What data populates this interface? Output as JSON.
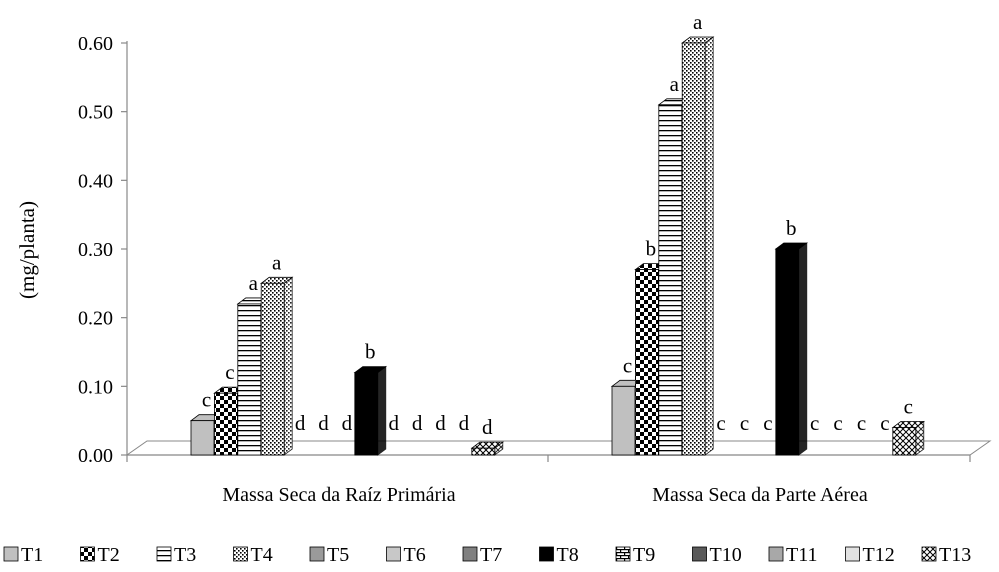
{
  "chart_data": {
    "type": "bar",
    "title": "",
    "xlabel": "",
    "ylabel": "(mg/planta)",
    "ylim": [
      0,
      0.6
    ],
    "yticks": [
      "0.00",
      "0.10",
      "0.20",
      "0.30",
      "0.40",
      "0.50",
      "0.60"
    ],
    "grid": false,
    "legend_position": "bottom",
    "categories": [
      "Massa Seca da Raíz Primária",
      "Massa Seca da Parte Aérea"
    ],
    "series": [
      {
        "name": "T1",
        "values": [
          0.05,
          0.1
        ],
        "letters": [
          "c",
          "c"
        ],
        "pattern": "solid-lightgray"
      },
      {
        "name": "T2",
        "values": [
          0.09,
          0.27
        ],
        "letters": [
          "c",
          "b"
        ],
        "pattern": "checker"
      },
      {
        "name": "T3",
        "values": [
          0.22,
          0.51
        ],
        "letters": [
          "a",
          "a"
        ],
        "pattern": "horizontal-lines"
      },
      {
        "name": "T4",
        "values": [
          0.25,
          0.6
        ],
        "letters": [
          "a",
          "a"
        ],
        "pattern": "dots"
      },
      {
        "name": "T5",
        "values": [
          0.0,
          0.0
        ],
        "letters": [
          "d",
          "c"
        ],
        "pattern": "solid-gray"
      },
      {
        "name": "T6",
        "values": [
          0.0,
          0.0
        ],
        "letters": [
          "d",
          "c"
        ],
        "pattern": "solid-silver"
      },
      {
        "name": "T7",
        "values": [
          0.0,
          0.0
        ],
        "letters": [
          "d",
          "c"
        ],
        "pattern": "solid-darkgray"
      },
      {
        "name": "T8",
        "values": [
          0.12,
          0.3
        ],
        "letters": [
          "b",
          "b"
        ],
        "pattern": "solid-black"
      },
      {
        "name": "T9",
        "values": [
          0.0,
          0.0
        ],
        "letters": [
          "d",
          "c"
        ],
        "pattern": "brick"
      },
      {
        "name": "T10",
        "values": [
          0.0,
          0.0
        ],
        "letters": [
          "d",
          "c"
        ],
        "pattern": "solid-charcoal"
      },
      {
        "name": "T11",
        "values": [
          0.0,
          0.0
        ],
        "letters": [
          "d",
          "c"
        ],
        "pattern": "solid-gray2"
      },
      {
        "name": "T12",
        "values": [
          0.0,
          0.0
        ],
        "letters": [
          "d",
          "c"
        ],
        "pattern": "solid-verylight"
      },
      {
        "name": "T13",
        "values": [
          0.01,
          0.04
        ],
        "letters": [
          "d",
          "c"
        ],
        "pattern": "crosshatch"
      }
    ],
    "colors": {
      "solid-lightgray": "#c0c0c0",
      "solid-gray": "#9a9a9a",
      "solid-silver": "#c8c8c8",
      "solid-darkgray": "#808080",
      "solid-black": "#000000",
      "solid-charcoal": "#5a5a5a",
      "solid-gray2": "#a8a8a8",
      "solid-verylight": "#e2e2e2"
    }
  }
}
